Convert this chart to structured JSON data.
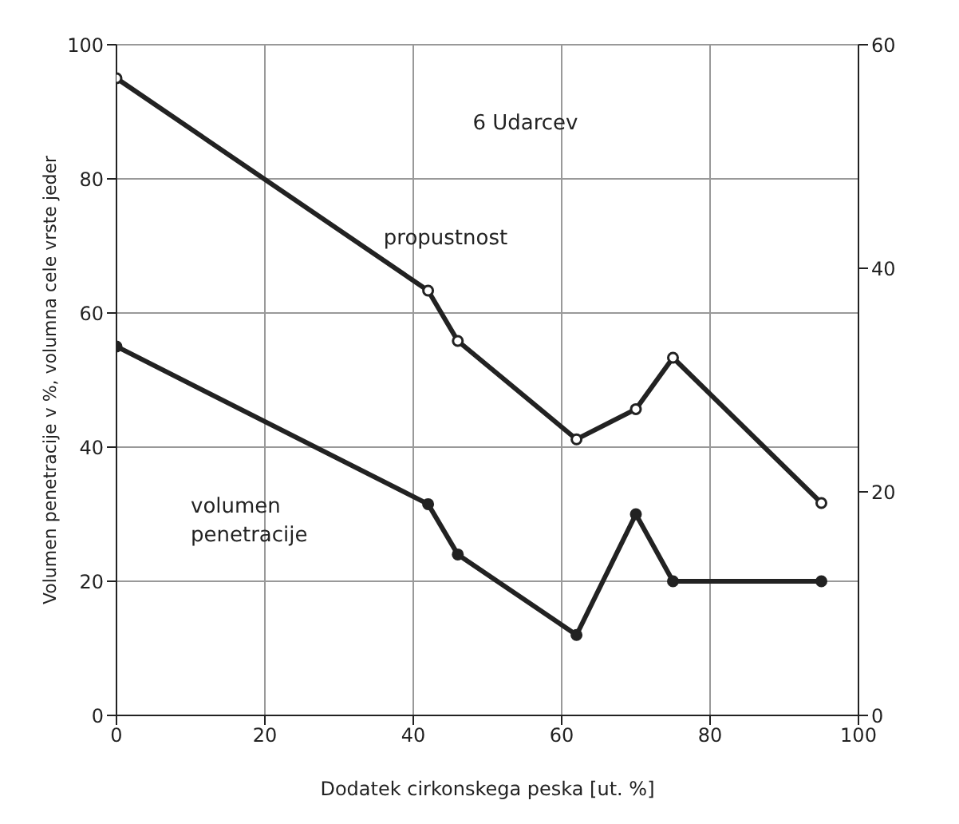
{
  "chart_data": {
    "type": "line",
    "xlabel": "Dodatek cirkonskega peska [ut. %]",
    "ylabel": "Volumen penetracije v %, volumna cele vrste jeder",
    "annotations": [
      "6 Udarcev"
    ],
    "xlim": [
      0,
      100
    ],
    "xticks": [
      0,
      20,
      40,
      60,
      80,
      100
    ],
    "ylim": [
      0,
      100
    ],
    "yticks": [
      0,
      20,
      40,
      60,
      80,
      100
    ],
    "y2lim": [
      0,
      60
    ],
    "y2ticks": [
      0,
      20,
      40,
      60
    ],
    "grid": true,
    "marker": "circle",
    "line_style": "solid",
    "series": [
      {
        "name": "propustnost",
        "color": "#222222",
        "axis": "y2",
        "x": [
          0,
          42,
          46,
          62,
          70,
          75,
          95
        ],
        "values": [
          57,
          38,
          33.5,
          24.7,
          27.4,
          32,
          19
        ]
      },
      {
        "name": "volumen penetracije",
        "color": "#222222",
        "x": [
          0,
          42,
          46,
          62,
          70,
          75,
          95
        ],
        "values": [
          55,
          31.5,
          24,
          12,
          30,
          20,
          20
        ]
      }
    ]
  }
}
